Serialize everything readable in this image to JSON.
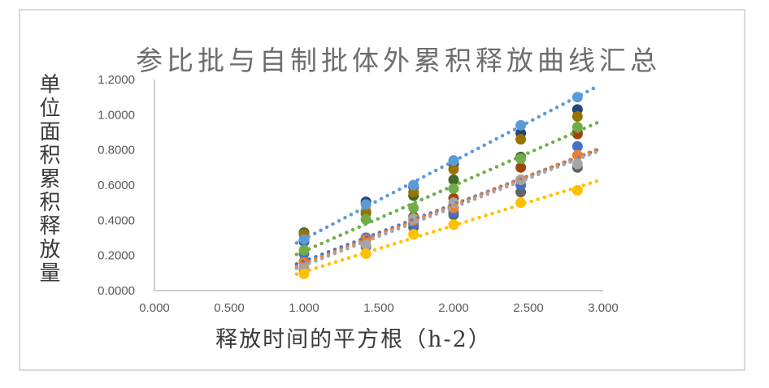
{
  "chart_data": {
    "type": "scatter",
    "title": "参比批与自制批体外累积释放曲线汇总",
    "xlabel": "释放时间的平方根（h-2）",
    "ylabel": "单位面积累积释放量",
    "x_ticks": [
      "0.000",
      "0.500",
      "1.000",
      "1.500",
      "2.000",
      "2.500",
      "3.000"
    ],
    "y_ticks": [
      "0.0000",
      "0.2000",
      "0.4000",
      "0.6000",
      "0.8000",
      "1.0000",
      "1.2000"
    ],
    "xlim": [
      0,
      3.0
    ],
    "ylim": [
      0,
      1.2
    ],
    "grid": false,
    "legend": "none",
    "trendline_style": "dotted-linear",
    "x": [
      1.0,
      1.414,
      1.732,
      2.0,
      2.449,
      2.828
    ],
    "series": [
      {
        "name": "series-dark-green",
        "color": "#43682B",
        "trendline": false,
        "values": [
          0.33,
          0.44,
          0.54,
          0.63,
          0.76,
          0.9
        ]
      },
      {
        "name": "series-navy",
        "color": "#264478",
        "trendline": false,
        "values": [
          0.28,
          0.505,
          0.59,
          0.72,
          0.895,
          1.03
        ]
      },
      {
        "name": "series-olive",
        "color": "#997300",
        "trendline": false,
        "values": [
          0.32,
          0.45,
          0.56,
          0.69,
          0.86,
          0.99
        ]
      },
      {
        "name": "series-brown",
        "color": "#9E480E",
        "trendline": false,
        "values": [
          0.165,
          0.3,
          0.42,
          0.525,
          0.7,
          0.89
        ]
      },
      {
        "name": "series-dark-gray",
        "color": "#636363",
        "trendline": false,
        "values": [
          0.12,
          0.25,
          0.36,
          0.43,
          0.56,
          0.7
        ]
      },
      {
        "name": "series-blue",
        "color": "#4472C4",
        "trendline": true,
        "values": [
          0.21,
          0.3,
          0.38,
          0.445,
          0.6,
          0.82
        ]
      },
      {
        "name": "series-orange",
        "color": "#ED7D31",
        "trendline": true,
        "values": [
          0.16,
          0.29,
          0.4,
          0.47,
          0.63,
          0.77
        ]
      },
      {
        "name": "series-gray",
        "color": "#A5A5A5",
        "trendline": true,
        "values": [
          0.13,
          0.26,
          0.41,
          0.5,
          0.63,
          0.72
        ]
      },
      {
        "name": "series-yellow",
        "color": "#FFC000",
        "trendline": true,
        "values": [
          0.095,
          0.21,
          0.32,
          0.375,
          0.5,
          0.57
        ]
      },
      {
        "name": "series-light-blue",
        "color": "#5B9BD5",
        "trendline": true,
        "values": [
          0.29,
          0.49,
          0.6,
          0.74,
          0.94,
          1.1
        ]
      },
      {
        "name": "series-green",
        "color": "#70AD47",
        "trendline": true,
        "values": [
          0.23,
          0.405,
          0.47,
          0.58,
          0.75,
          0.93
        ]
      }
    ],
    "colors": {
      "axis_line": "#BFBFBF",
      "tick_text": "#595959",
      "title_text": "#6D6D6D",
      "axis_title_text": "#3A3A3A",
      "frame_border": "#D9D9D9",
      "background": "#FFFFFF"
    }
  }
}
